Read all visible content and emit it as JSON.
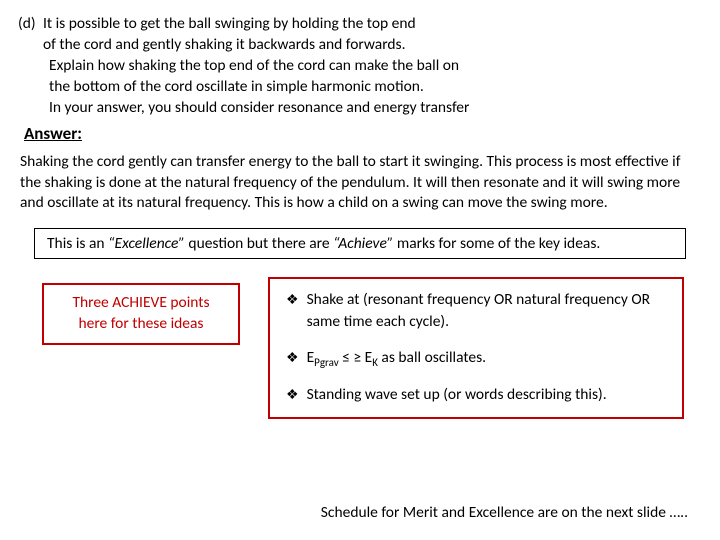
{
  "question": {
    "label": "(d)",
    "line1": "It is possible to get the ball swinging by holding the top end",
    "line2": "of the cord and gently shaking it backwards and forwards.",
    "line3": "Explain how shaking the top end of the cord can make the ball on",
    "line4": "the bottom of the cord oscillate in simple harmonic motion.",
    "line5": "In your answer, you should consider resonance and energy transfer"
  },
  "answer": {
    "label": "Answer:",
    "body": "Shaking the cord gently can transfer energy to the ball to start it swinging. This process is most effective if the shaking is done at the natural frequency of the pendulum. It will then resonate and it will swing more and oscillate at its natural frequency. This is how a child on a swing can move the swing more."
  },
  "excellence_note": {
    "prefix": "This is an ",
    "emph1": "“Excellence”",
    "mid": " question but there are ",
    "emph2": "“Achieve”",
    "suffix": " marks for some of the key ideas."
  },
  "achieve_box": {
    "line1": "Three ACHIEVE points",
    "line2": "here for these ideas"
  },
  "points": {
    "p1": "Shake at (resonant frequency  OR natural frequency OR same time each cycle).",
    "p2_prefix": "E",
    "p2_sub1": "Pgrav",
    "p2_mid": " ≤ ≥ E",
    "p2_sub2": "K",
    "p2_suffix": " as ball oscillates.",
    "p3": "Standing wave set up (or words describing this)."
  },
  "footer": "Schedule for Merit and Excellence are on the next slide ….."
}
